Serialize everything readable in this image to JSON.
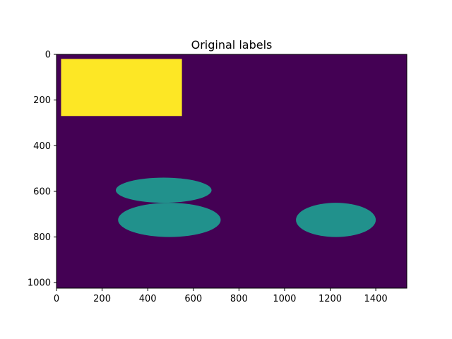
{
  "chart_data": {
    "type": "heatmap",
    "title": "Original labels",
    "xlabel": "",
    "ylabel": "",
    "image_size": [
      1536,
      1024
    ],
    "xlim": [
      0,
      1536
    ],
    "ylim": [
      1024,
      0
    ],
    "x_ticks": [
      0,
      200,
      400,
      600,
      800,
      1000,
      1200,
      1400
    ],
    "y_ticks": [
      0,
      200,
      400,
      600,
      800,
      1000
    ],
    "grid": false,
    "colormap": "viridis",
    "background_label": 0,
    "background_color": "#440154",
    "regions": [
      {
        "label": 2,
        "shape": "rectangle",
        "x": [
          20,
          550
        ],
        "y": [
          20,
          270
        ],
        "color": "#fde725"
      },
      {
        "label": 1,
        "shape": "ellipse",
        "center": [
          470,
          595
        ],
        "radii": [
          210,
          55
        ],
        "color": "#21918c"
      },
      {
        "label": 1,
        "shape": "ellipse",
        "center": [
          495,
          725
        ],
        "radii": [
          225,
          75
        ],
        "color": "#21918c"
      },
      {
        "label": 1,
        "shape": "ellipse",
        "center": [
          1225,
          725
        ],
        "radii": [
          175,
          75
        ],
        "color": "#21918c"
      }
    ]
  }
}
